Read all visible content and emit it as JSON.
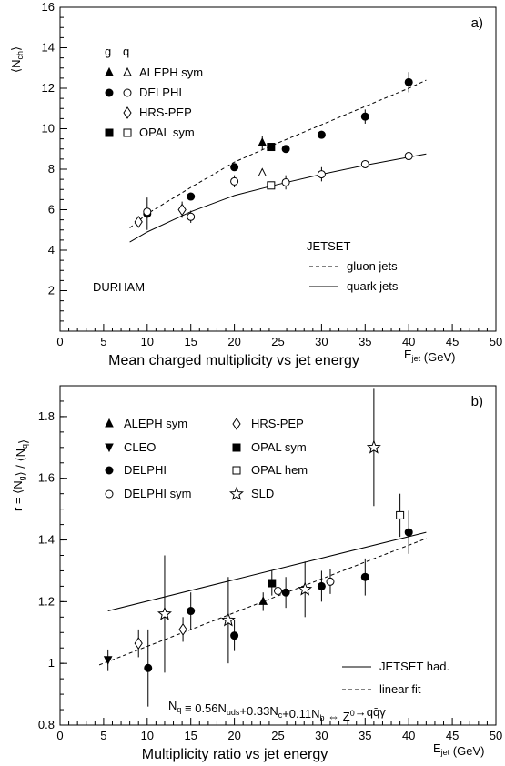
{
  "chart_data": [
    {
      "type": "scatter",
      "panel_label": "a)",
      "caption": "Mean charged multiplicity vs jet energy",
      "xlabel": "E_jet (GeV)",
      "ylabel": "⟨N_ch⟩",
      "xlim": [
        0,
        50
      ],
      "ylim": [
        0,
        16
      ],
      "x_ticks": [
        "0",
        "5",
        "10",
        "15",
        "20",
        "25",
        "30",
        "35",
        "40",
        "45",
        "50"
      ],
      "y_ticks": [
        "2",
        "4",
        "6",
        "8",
        "10",
        "12",
        "14",
        "16"
      ],
      "grid": false,
      "legend_header": {
        "g": "g",
        "q": "q"
      },
      "legend": [
        {
          "name": "ALEPH sym",
          "g_marker": "triangle-filled",
          "q_marker": "triangle-open"
        },
        {
          "name": "DELPHI",
          "g_marker": "circle-filled",
          "q_marker": "circle-open"
        },
        {
          "name": "HRS-PEP",
          "q_marker": "diamond-open"
        },
        {
          "name": "OPAL sym",
          "g_marker": "square-filled",
          "q_marker": "square-open"
        }
      ],
      "notes": {
        "scheme": "DURHAM",
        "model": "JETSET"
      },
      "curves_legend": [
        {
          "name": "gluon jets",
          "style": "dashed"
        },
        {
          "name": "quark jets",
          "style": "solid"
        }
      ],
      "curves": {
        "gluon": {
          "x": [
            8,
            10,
            15,
            20,
            25,
            30,
            35,
            40,
            42
          ],
          "y": [
            5.1,
            5.8,
            7.1,
            8.35,
            9.3,
            10.2,
            11.1,
            12.0,
            12.4
          ]
        },
        "quark": {
          "x": [
            8,
            10,
            15,
            20,
            25,
            30,
            35,
            40,
            42
          ],
          "y": [
            4.4,
            4.9,
            5.9,
            6.7,
            7.25,
            7.75,
            8.2,
            8.6,
            8.75
          ]
        }
      },
      "series": [
        {
          "marker": "triangle-filled",
          "points": [
            {
              "x": 23.2,
              "y": 9.3,
              "err": 0.35
            }
          ]
        },
        {
          "marker": "triangle-open",
          "points": [
            {
              "x": 23.2,
              "y": 7.8
            }
          ]
        },
        {
          "marker": "circle-filled",
          "points": [
            {
              "x": 10,
              "y": 5.8,
              "err": 0.8
            },
            {
              "x": 15,
              "y": 6.65
            },
            {
              "x": 20,
              "y": 8.1
            },
            {
              "x": 25.9,
              "y": 9.0
            },
            {
              "x": 30,
              "y": 9.7
            },
            {
              "x": 35,
              "y": 10.6,
              "err": 0.35
            },
            {
              "x": 40,
              "y": 12.3,
              "err": 0.5
            }
          ]
        },
        {
          "marker": "circle-open",
          "points": [
            {
              "x": 10,
              "y": 5.9
            },
            {
              "x": 15,
              "y": 5.65,
              "err": 0.3
            },
            {
              "x": 20,
              "y": 7.4,
              "err": 0.3
            },
            {
              "x": 25.9,
              "y": 7.35,
              "err": 0.35
            },
            {
              "x": 30,
              "y": 7.75,
              "err": 0.35
            },
            {
              "x": 35,
              "y": 8.25
            },
            {
              "x": 40,
              "y": 8.65
            }
          ]
        },
        {
          "marker": "diamond-open",
          "points": [
            {
              "x": 9.0,
              "y": 5.4
            },
            {
              "x": 14.0,
              "y": 6.0,
              "err": 0.4
            }
          ]
        },
        {
          "marker": "square-filled",
          "points": [
            {
              "x": 24.2,
              "y": 9.1
            }
          ]
        },
        {
          "marker": "square-open",
          "points": [
            {
              "x": 24.2,
              "y": 7.2
            }
          ]
        }
      ]
    },
    {
      "type": "scatter",
      "panel_label": "b)",
      "caption": "Multiplicity ratio vs jet energy",
      "xlabel": "E_jet (GeV)",
      "ylabel": "r = ⟨N_g⟩ / ⟨N_q⟩",
      "xlim": [
        0,
        50
      ],
      "ylim": [
        0.8,
        1.9
      ],
      "x_ticks": [
        "0",
        "5",
        "10",
        "15",
        "20",
        "25",
        "30",
        "35",
        "40",
        "45",
        "50"
      ],
      "y_ticks": [
        "0.8",
        "1",
        "1.2",
        "1.4",
        "1.6",
        "1.8"
      ],
      "grid": false,
      "legend": [
        {
          "name": "ALEPH sym",
          "marker": "triangle-filled"
        },
        {
          "name": "HRS-PEP",
          "marker": "diamond-open"
        },
        {
          "name": "CLEO",
          "marker": "triangle-down-filled"
        },
        {
          "name": "OPAL sym",
          "marker": "square-filled"
        },
        {
          "name": "DELPHI",
          "marker": "circle-filled"
        },
        {
          "name": "OPAL hem",
          "marker": "square-open"
        },
        {
          "name": "DELPHI sym",
          "marker": "circle-open"
        },
        {
          "name": "SLD",
          "marker": "star-open"
        }
      ],
      "curves_legend": [
        {
          "name": "JETSET had.",
          "style": "solid"
        },
        {
          "name": "linear fit",
          "style": "dashed"
        }
      ],
      "formula": "N_q ≡ 0.56N_uds+0.33N_c+0.11N_b ⇔ Z⁰→qq̄γ",
      "curves": {
        "jetset": {
          "x": [
            5.5,
            42
          ],
          "y": [
            1.17,
            1.425
          ]
        },
        "linear_fit": {
          "x": [
            4.5,
            42
          ],
          "y": [
            0.995,
            1.405
          ]
        }
      },
      "series": [
        {
          "marker": "triangle-filled",
          "points": [
            {
              "x": 23.3,
              "y": 1.2,
              "err": 0.03
            }
          ]
        },
        {
          "marker": "triangle-down-filled",
          "points": [
            {
              "x": 5.5,
              "y": 1.01,
              "err": 0.035
            }
          ]
        },
        {
          "marker": "circle-filled",
          "points": [
            {
              "x": 10.1,
              "y": 0.985,
              "err": 0.125
            },
            {
              "x": 15,
              "y": 1.17,
              "err": 0.06
            },
            {
              "x": 20,
              "y": 1.09,
              "err": 0.05
            },
            {
              "x": 25.9,
              "y": 1.23,
              "err": 0.05
            },
            {
              "x": 30,
              "y": 1.25,
              "err": 0.05
            },
            {
              "x": 35,
              "y": 1.28,
              "err": 0.06
            },
            {
              "x": 40,
              "y": 1.425,
              "err": 0.07
            }
          ]
        },
        {
          "marker": "circle-open",
          "points": [
            {
              "x": 25,
              "y": 1.235,
              "err": 0.03
            },
            {
              "x": 31,
              "y": 1.265,
              "err": 0.04
            }
          ]
        },
        {
          "marker": "diamond-open",
          "points": [
            {
              "x": 9,
              "y": 1.065,
              "err": 0.045
            },
            {
              "x": 14.1,
              "y": 1.11,
              "err": 0.04
            }
          ]
        },
        {
          "marker": "square-filled",
          "points": [
            {
              "x": 24.3,
              "y": 1.26,
              "err": 0.04
            }
          ]
        },
        {
          "marker": "square-open",
          "points": [
            {
              "x": 39,
              "y": 1.48,
              "err": 0.07
            }
          ]
        },
        {
          "marker": "star-open",
          "points": [
            {
              "x": 12,
              "y": 1.16,
              "err": 0.19
            },
            {
              "x": 19.3,
              "y": 1.14,
              "err": 0.14
            },
            {
              "x": 28.1,
              "y": 1.24,
              "err": 0.09
            },
            {
              "x": 36,
              "y": 1.7,
              "err": 0.19
            }
          ]
        }
      ]
    }
  ]
}
